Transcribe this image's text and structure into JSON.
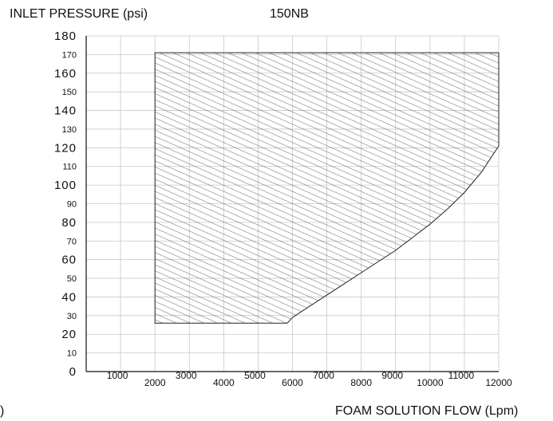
{
  "chart_data": {
    "type": "area",
    "title": "150NB",
    "ylabel": "INLET PRESSURE (psi)",
    "xlabel": "FOAM SOLUTION FLOW (Lpm)",
    "corner_fragment": ")",
    "xlim": [
      0,
      12000
    ],
    "ylim": [
      0,
      180
    ],
    "grid": true,
    "x_ticks": [
      {
        "value": 1000,
        "label": "1000",
        "row": "upper"
      },
      {
        "value": 2000,
        "label": "2000",
        "row": "lower"
      },
      {
        "value": 3000,
        "label": "3000",
        "row": "upper"
      },
      {
        "value": 4000,
        "label": "4000",
        "row": "lower"
      },
      {
        "value": 5000,
        "label": "5000",
        "row": "upper"
      },
      {
        "value": 6000,
        "label": "6000",
        "row": "lower"
      },
      {
        "value": 7000,
        "label": "7000",
        "row": "upper"
      },
      {
        "value": 8000,
        "label": "8000",
        "row": "lower"
      },
      {
        "value": 9000,
        "label": "9000",
        "row": "upper"
      },
      {
        "value": 10000,
        "label": "10000",
        "row": "lower"
      },
      {
        "value": 11000,
        "label": "11000",
        "row": "upper"
      },
      {
        "value": 12000,
        "label": "12000",
        "row": "lower"
      }
    ],
    "y_ticks": [
      {
        "value": 0,
        "label": "0",
        "major": true
      },
      {
        "value": 10,
        "label": "10",
        "major": false
      },
      {
        "value": 20,
        "label": "20",
        "major": true
      },
      {
        "value": 30,
        "label": "30",
        "major": false
      },
      {
        "value": 40,
        "label": "40",
        "major": true
      },
      {
        "value": 50,
        "label": "50",
        "major": false
      },
      {
        "value": 60,
        "label": "60",
        "major": true
      },
      {
        "value": 70,
        "label": "70",
        "major": false
      },
      {
        "value": 80,
        "label": "80",
        "major": true
      },
      {
        "value": 90,
        "label": "90",
        "major": false
      },
      {
        "value": 100,
        "label": "100",
        "major": true
      },
      {
        "value": 110,
        "label": "110",
        "major": false
      },
      {
        "value": 120,
        "label": "120",
        "major": true
      },
      {
        "value": 130,
        "label": "130",
        "major": false
      },
      {
        "value": 140,
        "label": "140",
        "major": true
      },
      {
        "value": 150,
        "label": "150",
        "major": false
      },
      {
        "value": 160,
        "label": "160",
        "major": true
      },
      {
        "value": 170,
        "label": "170",
        "major": false
      },
      {
        "value": 180,
        "label": "180",
        "major": true
      }
    ],
    "region": {
      "fill": "diagonal-hatch",
      "boundary": [
        {
          "x": 2000,
          "y": 26
        },
        {
          "x": 2000,
          "y": 171
        },
        {
          "x": 12000,
          "y": 171
        },
        {
          "x": 12000,
          "y": 121
        },
        {
          "x": 11500,
          "y": 107
        },
        {
          "x": 11000,
          "y": 96
        },
        {
          "x": 10500,
          "y": 87
        },
        {
          "x": 10000,
          "y": 79
        },
        {
          "x": 9500,
          "y": 72
        },
        {
          "x": 9000,
          "y": 65
        },
        {
          "x": 8500,
          "y": 59
        },
        {
          "x": 8000,
          "y": 53
        },
        {
          "x": 7500,
          "y": 47
        },
        {
          "x": 7000,
          "y": 41
        },
        {
          "x": 6500,
          "y": 35
        },
        {
          "x": 6000,
          "y": 29
        },
        {
          "x": 5850,
          "y": 26
        }
      ]
    },
    "colors": {
      "axis": "#111111",
      "grid": "#c8c8c8",
      "hatch": "#222222",
      "text": "#111111"
    }
  }
}
